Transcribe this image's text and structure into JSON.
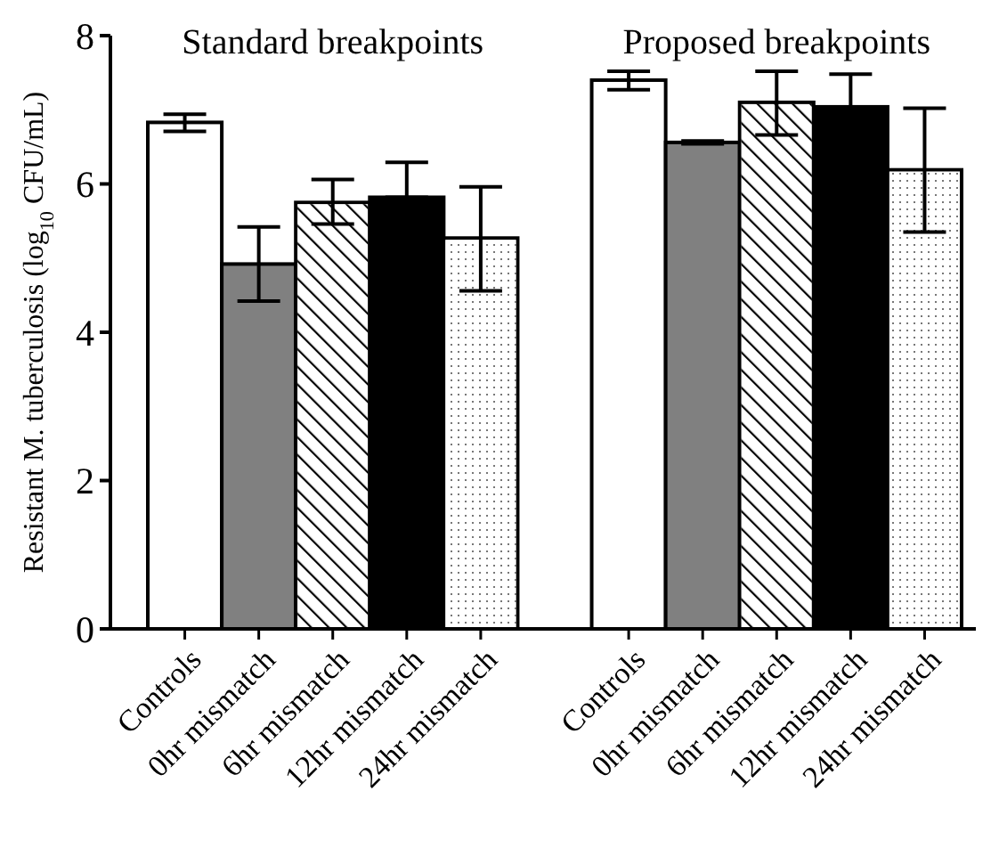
{
  "chart_data": {
    "type": "bar",
    "ylabel": "Resistant M. tuberculosis (log$_{10}$ CFU/mL)",
    "categories": [
      "Controls",
      "0hr mismatch",
      "6hr mismatch",
      "12hr mismatch",
      "24hr mismatch",
      null,
      "Controls",
      "0hr mismatch",
      "6hr mismatch",
      "12hr mismatch",
      "24hr mismatch"
    ],
    "values": [
      6.83,
      4.92,
      5.75,
      5.82,
      5.27,
      null,
      7.4,
      6.56,
      7.1,
      7.04,
      6.19
    ],
    "errors": [
      [
        6.71,
        6.94
      ],
      [
        4.42,
        5.42
      ],
      [
        5.46,
        6.06
      ],
      [
        5.82,
        6.29
      ],
      [
        4.56,
        5.96
      ],
      null,
      [
        7.27,
        7.52
      ],
      [
        6.54,
        6.58
      ],
      [
        6.66,
        7.52
      ],
      [
        7.04,
        7.48
      ],
      [
        5.35,
        7.02
      ]
    ],
    "colors": [
      "#ffffff",
      "#808080",
      "#ffffff",
      "#000000",
      "#ffffff",
      null,
      "#ffffff",
      "#808080",
      "#ffffff",
      "#000000",
      "#ffffff"
    ],
    "annotations": [
      "Standard breakpoints",
      "Proposed breakpoints"
    ],
    "ylim": [
      0,
      8
    ],
    "yticks": [
      0,
      2,
      4,
      6,
      8
    ],
    "grid": false
  }
}
